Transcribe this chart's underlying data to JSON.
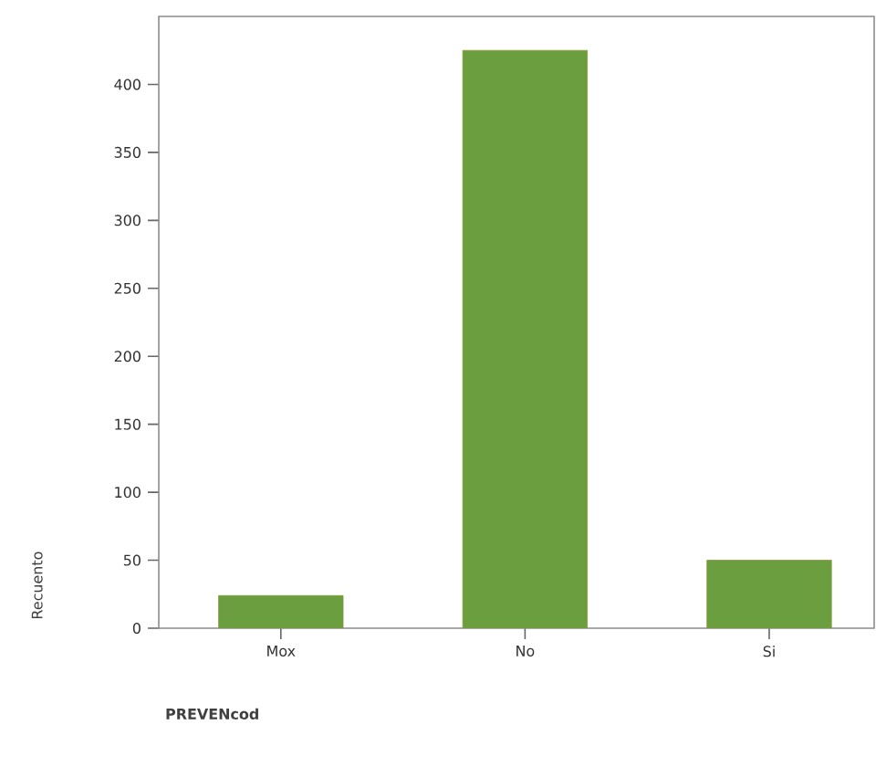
{
  "chart_data": {
    "type": "bar",
    "xlabel": "PREVENcod",
    "ylabel": "Recuento",
    "categories": [
      "Mox",
      "No",
      "Si"
    ],
    "values": [
      24,
      425,
      50
    ],
    "color": "#6a9e3f",
    "ylim": [
      0,
      450
    ],
    "yticks": [
      0,
      50,
      100,
      150,
      200,
      250,
      300,
      350,
      400
    ],
    "grid": false
  }
}
